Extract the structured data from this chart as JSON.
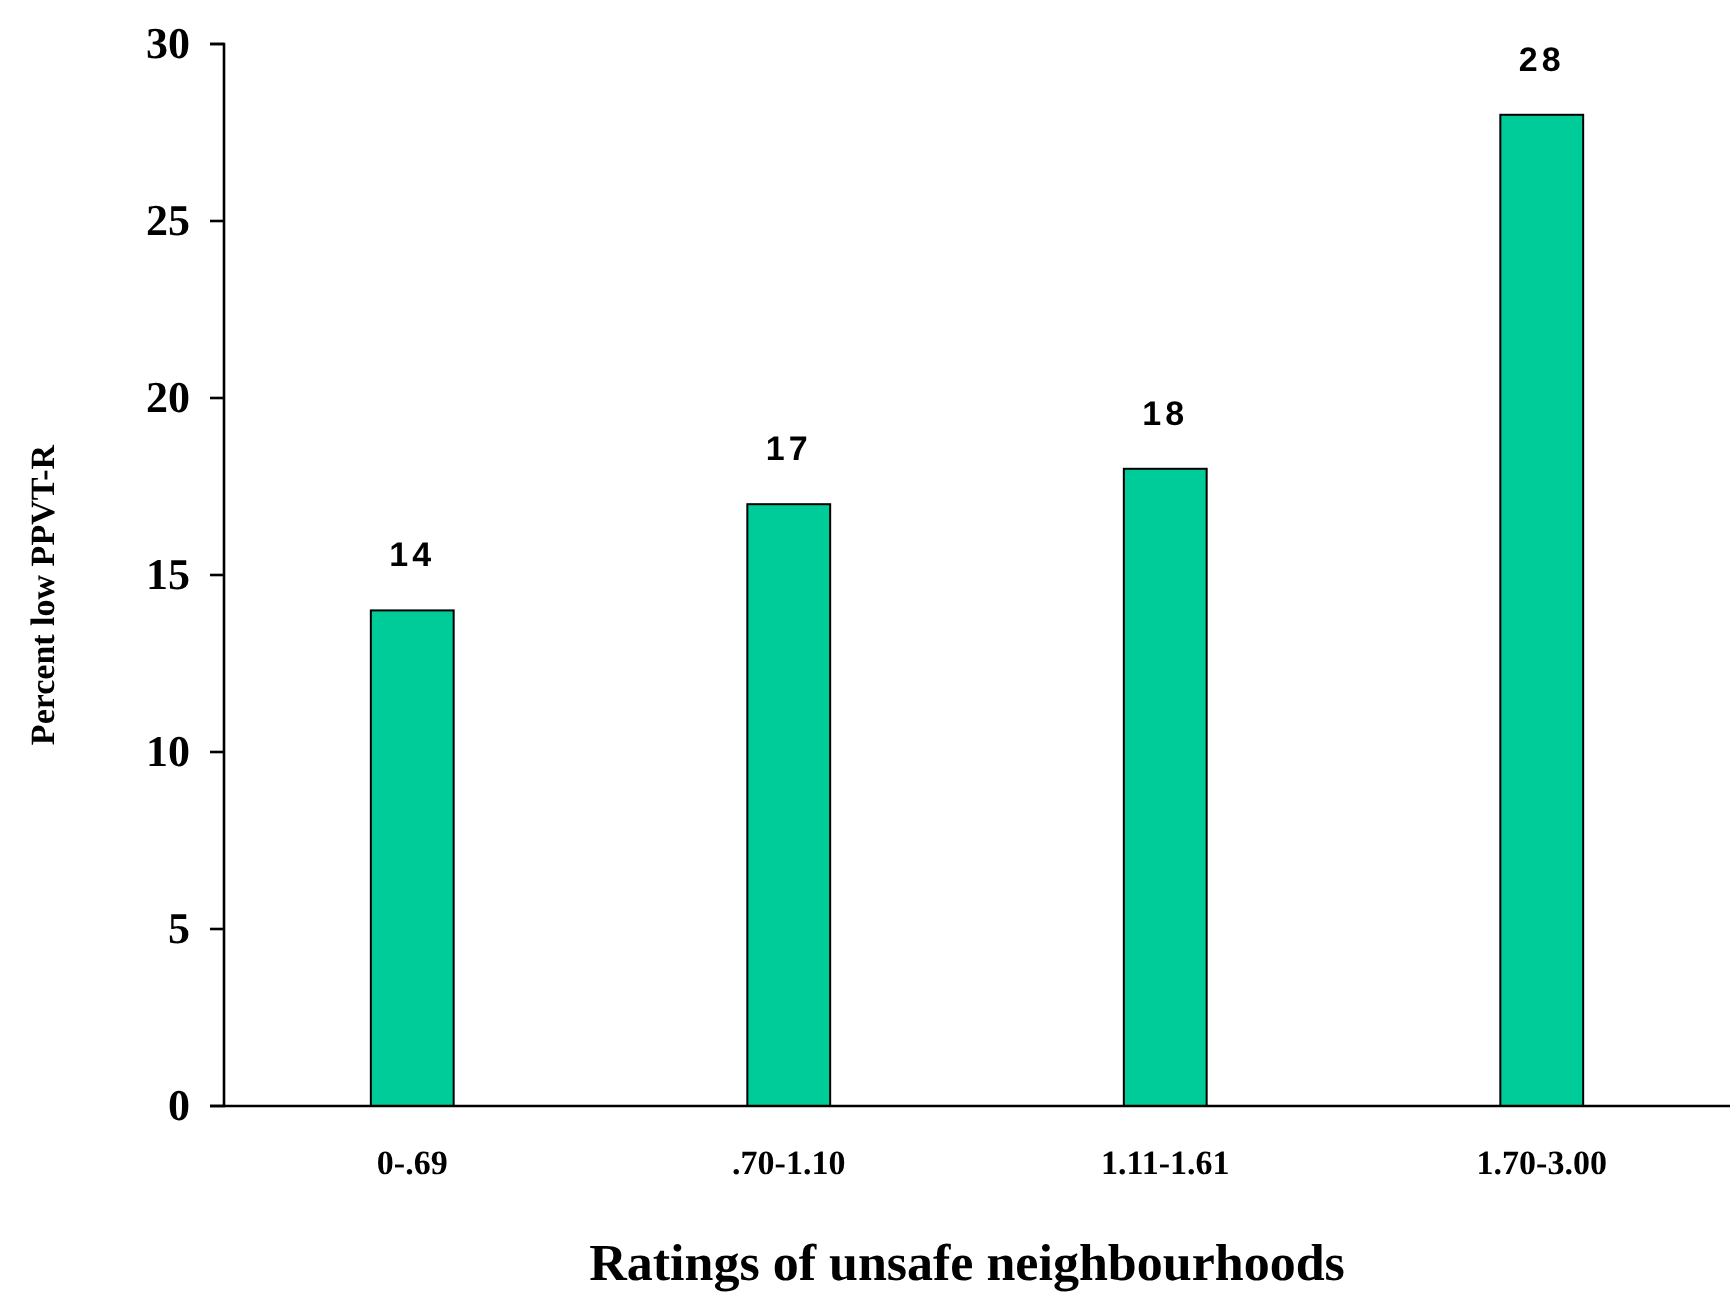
{
  "chart_data": {
    "type": "bar",
    "xlabel": "Ratings of unsafe neighbourhoods",
    "ylabel": "Percent low PPVT-R",
    "categories": [
      "0-.69",
      ".70-1.10",
      "1.11-1.61",
      "1.70-3.00"
    ],
    "values": [
      14,
      17,
      18,
      28
    ],
    "color": "#00cc99",
    "data_labels": true,
    "ylim": [
      0,
      30
    ],
    "yticks": [
      0,
      5,
      10,
      15,
      20,
      25,
      30
    ],
    "grid": false
  }
}
